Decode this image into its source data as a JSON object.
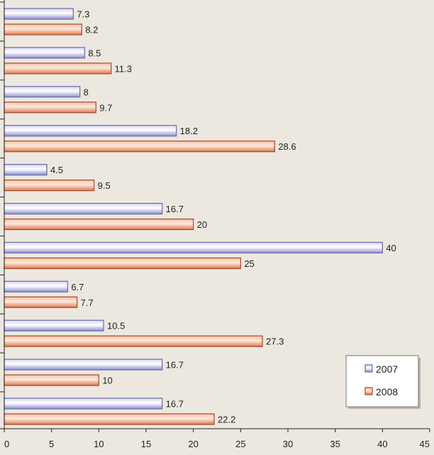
{
  "chart_data": {
    "type": "bar",
    "orientation": "horizontal",
    "categories": [
      "",
      "",
      "",
      "",
      "",
      "",
      "",
      "",
      "",
      "",
      ""
    ],
    "series": [
      {
        "name": "2007",
        "color": "#9a9ad8",
        "values": [
          7.3,
          8.5,
          8,
          18.2,
          4.5,
          16.7,
          40,
          6.7,
          10.5,
          16.7,
          16.7
        ],
        "labels": [
          "7.3",
          "8.5",
          "8",
          "18.2",
          "4.5",
          "16.7",
          "40",
          "6.7",
          "10.5",
          "16.7",
          "16.7"
        ]
      },
      {
        "name": "2008",
        "color": "#e8825a",
        "values": [
          8.2,
          11.3,
          9.7,
          28.6,
          9.5,
          20,
          25,
          7.7,
          27.3,
          10,
          22.2
        ],
        "labels": [
          "8.2",
          "11.3",
          "9.7",
          "28.6",
          "9.5",
          "20",
          "25",
          "7.7",
          "27.3",
          "10",
          "22.2"
        ]
      }
    ],
    "xlim": [
      0,
      45
    ],
    "x_ticks": [
      "0",
      "5",
      "10",
      "15",
      "20",
      "25",
      "30",
      "35",
      "40",
      "45"
    ],
    "legend": {
      "position": "bottom-right",
      "entries": [
        "2007",
        "2008"
      ]
    },
    "grid": false,
    "title": "",
    "xlabel": "",
    "ylabel": ""
  }
}
